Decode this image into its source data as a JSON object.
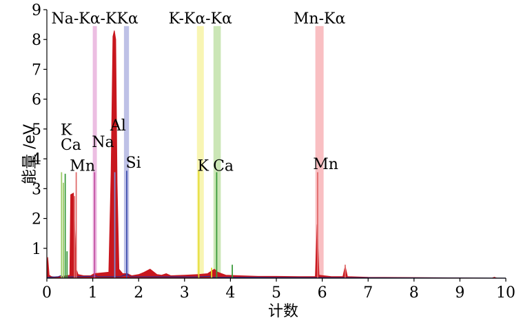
{
  "chart_data": {
    "type": "line",
    "title": "",
    "xlabel": "计数",
    "ylabel": "能量 /eV",
    "xlim": [
      0,
      10
    ],
    "ylim": [
      0,
      9
    ],
    "xticks": [
      "0",
      "1",
      "2",
      "3",
      "4",
      "5",
      "6",
      "7",
      "8",
      "9",
      "10"
    ],
    "yticks": [
      "1",
      "2",
      "3",
      "4",
      "5",
      "6",
      "7",
      "8",
      "9"
    ],
    "grid": false,
    "bands": [
      {
        "label": "Na-Kα-KKα",
        "x_start": 1.0,
        "x_end": 1.09,
        "color": "#e6a8d8"
      },
      {
        "label": "",
        "x_start": 1.68,
        "x_end": 1.79,
        "color": "#a8acde"
      },
      {
        "label": "K-Kα-Kα",
        "x_start": 3.27,
        "x_end": 3.42,
        "color": "#f6f29a"
      },
      {
        "label": "",
        "x_start": 3.63,
        "x_end": 3.79,
        "color": "#b9dd9d"
      },
      {
        "label": "Mn-Kα",
        "x_start": 5.85,
        "x_end": 6.03,
        "color": "#f7a9ad"
      }
    ],
    "element_labels": [
      {
        "text": "K",
        "x": 0.3,
        "y": 4.8
      },
      {
        "text": "Ca",
        "x": 0.3,
        "y": 4.3
      },
      {
        "text": "Mn",
        "x": 0.5,
        "y": 3.6
      },
      {
        "text": "Na",
        "x": 0.98,
        "y": 4.4
      },
      {
        "text": "Al",
        "x": 1.38,
        "y": 4.95
      },
      {
        "text": "Si",
        "x": 1.72,
        "y": 3.7
      },
      {
        "text": "K",
        "x": 3.28,
        "y": 3.6
      },
      {
        "text": "Ca",
        "x": 3.62,
        "y": 3.6
      },
      {
        "text": "Mn",
        "x": 5.8,
        "y": 3.65
      }
    ],
    "series": [
      {
        "color": "#c8171e",
        "fill": true,
        "points": [
          [
            0.0,
            0.0
          ],
          [
            0.02,
            0.7
          ],
          [
            0.05,
            0.1
          ],
          [
            0.1,
            0.05
          ],
          [
            0.2,
            0.03
          ],
          [
            0.3,
            0.05
          ],
          [
            0.5,
            0.1
          ],
          [
            0.52,
            2.8
          ],
          [
            0.58,
            2.85
          ],
          [
            0.64,
            0.3
          ],
          [
            0.68,
            0.12
          ],
          [
            0.8,
            0.08
          ],
          [
            0.95,
            0.08
          ],
          [
            1.03,
            0.15
          ],
          [
            1.35,
            0.2
          ],
          [
            1.4,
            3.5
          ],
          [
            1.44,
            8.1
          ],
          [
            1.47,
            8.3
          ],
          [
            1.5,
            8.0
          ],
          [
            1.53,
            3.2
          ],
          [
            1.57,
            0.3
          ],
          [
            1.65,
            0.15
          ],
          [
            1.75,
            0.15
          ],
          [
            1.85,
            0.08
          ],
          [
            2.0,
            0.12
          ],
          [
            2.12,
            0.2
          ],
          [
            2.25,
            0.3
          ],
          [
            2.4,
            0.12
          ],
          [
            2.5,
            0.1
          ],
          [
            2.6,
            0.15
          ],
          [
            2.7,
            0.08
          ],
          [
            3.0,
            0.1
          ],
          [
            3.3,
            0.12
          ],
          [
            3.5,
            0.15
          ],
          [
            3.65,
            0.3
          ],
          [
            3.72,
            0.2
          ],
          [
            3.9,
            0.1
          ],
          [
            4.2,
            0.08
          ],
          [
            4.6,
            0.06
          ],
          [
            5.0,
            0.06
          ],
          [
            5.5,
            0.05
          ],
          [
            5.85,
            0.05
          ],
          [
            5.89,
            1.8
          ],
          [
            5.93,
            0.1
          ],
          [
            6.2,
            0.05
          ],
          [
            6.45,
            0.05
          ],
          [
            6.5,
            0.4
          ],
          [
            6.55,
            0.05
          ],
          [
            7.0,
            0.03
          ],
          [
            8.0,
            0.02
          ],
          [
            9.0,
            0.01
          ],
          [
            9.7,
            0.0
          ],
          [
            9.75,
            0.03
          ],
          [
            9.8,
            0.0
          ],
          [
            10.0,
            0.0
          ]
        ]
      },
      {
        "color": "#2b2b8f",
        "fill": false,
        "points": [
          [
            0.0,
            0.02
          ],
          [
            0.25,
            0.05
          ],
          [
            0.3,
            0.08
          ],
          [
            0.35,
            0.04
          ],
          [
            1.0,
            0.06
          ],
          [
            1.05,
            0.1
          ],
          [
            1.1,
            0.05
          ],
          [
            1.6,
            0.05
          ],
          [
            1.7,
            0.1
          ],
          [
            1.75,
            0.15
          ],
          [
            1.8,
            0.05
          ],
          [
            3.2,
            0.04
          ],
          [
            3.55,
            0.06
          ],
          [
            3.6,
            0.03
          ],
          [
            5.0,
            0.02
          ],
          [
            10.0,
            0.0
          ]
        ]
      }
    ],
    "marker_lines": [
      {
        "x": 0.32,
        "y": 3.55,
        "color": "#9ccc66"
      },
      {
        "x": 0.36,
        "y": 3.2,
        "color": "#9ccc66"
      },
      {
        "x": 0.4,
        "y": 3.5,
        "color": "#3a9a3a"
      },
      {
        "x": 0.44,
        "y": 0.9,
        "color": "#3a9a3a"
      },
      {
        "x": 0.6,
        "y": 2.75,
        "color": "#e06b6b"
      },
      {
        "x": 0.64,
        "y": 3.55,
        "color": "#e06b6b"
      },
      {
        "x": 1.04,
        "y": 3.55,
        "color": "#c24fa2"
      },
      {
        "x": 1.48,
        "y": 3.55,
        "color": "#7f8fd0"
      },
      {
        "x": 1.74,
        "y": 3.6,
        "color": "#3f4faf"
      },
      {
        "x": 3.31,
        "y": 3.6,
        "color": "#e3d92a"
      },
      {
        "x": 3.59,
        "y": 0.35,
        "color": "#e3d92a"
      },
      {
        "x": 3.7,
        "y": 3.55,
        "color": "#3a9a3a"
      },
      {
        "x": 4.04,
        "y": 0.45,
        "color": "#3a9a3a"
      },
      {
        "x": 5.9,
        "y": 3.55,
        "color": "#e06b6b"
      },
      {
        "x": 6.5,
        "y": 0.45,
        "color": "#e06b6b"
      }
    ]
  }
}
